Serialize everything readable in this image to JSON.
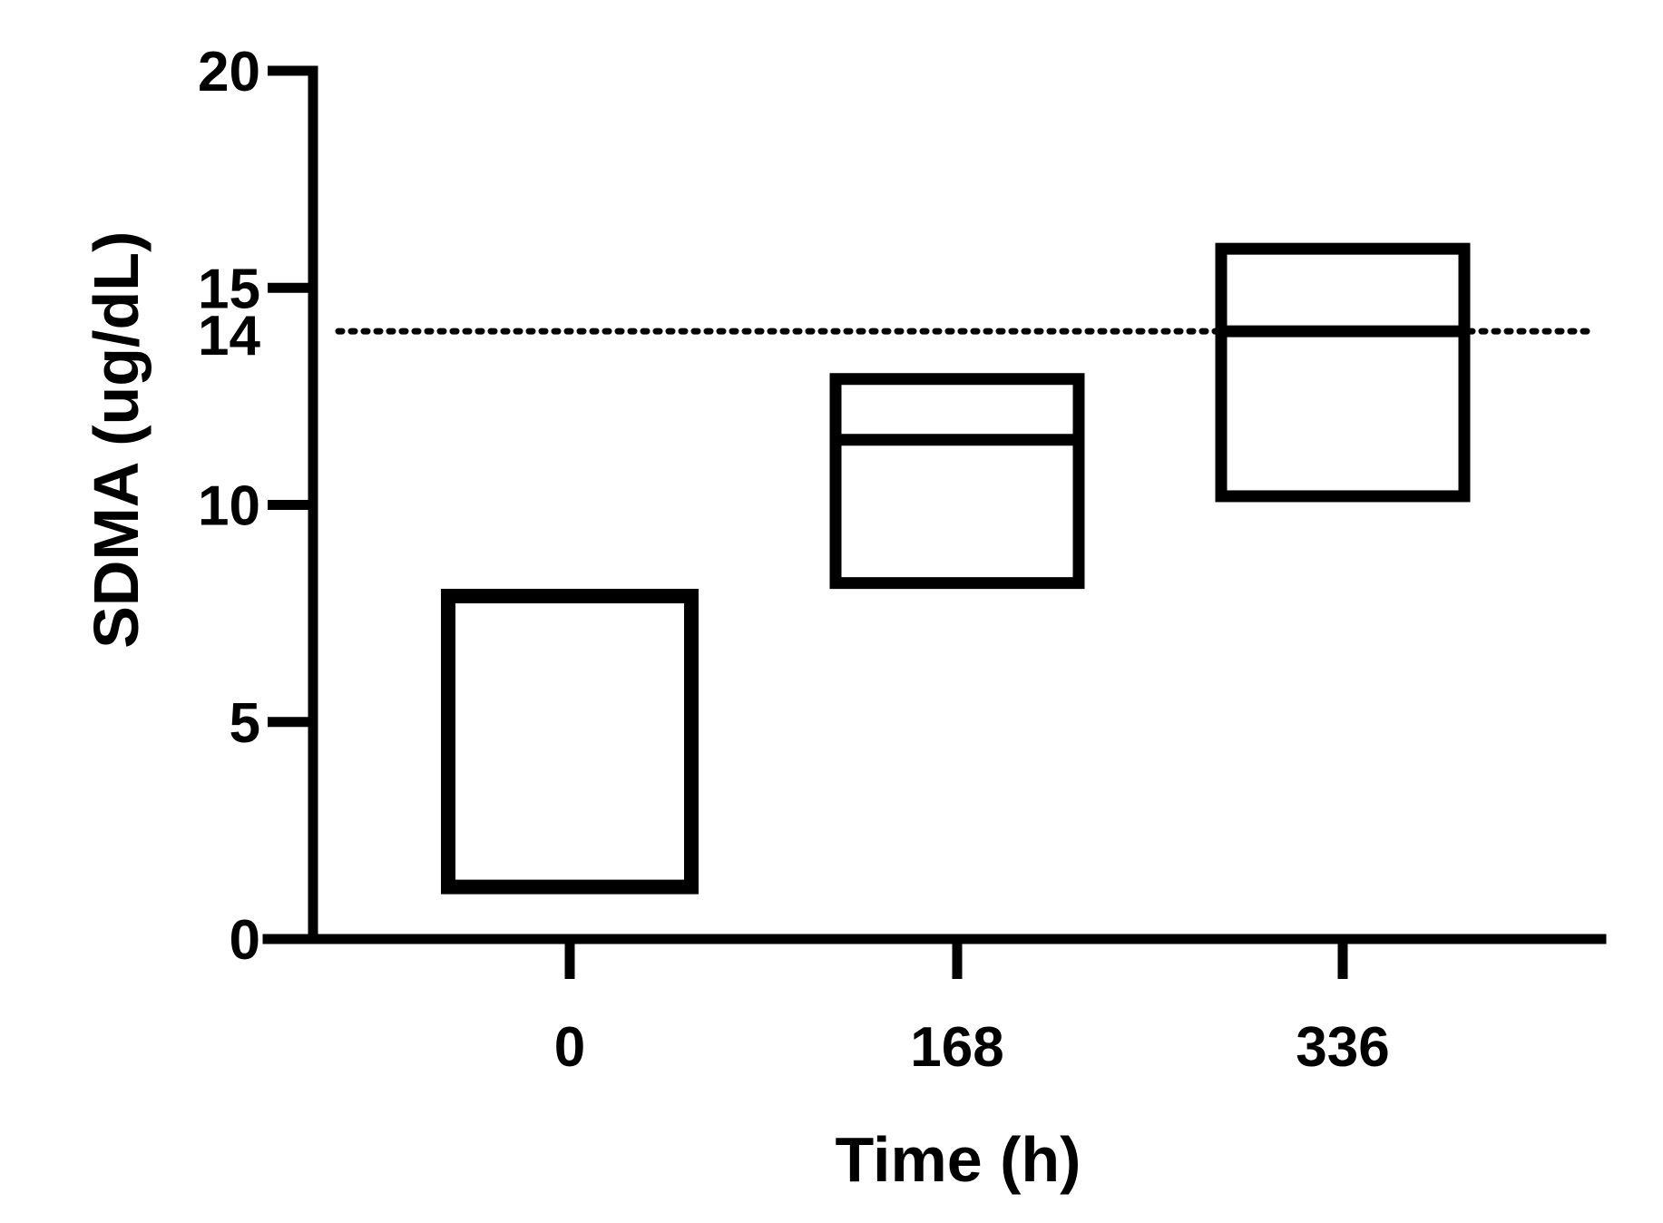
{
  "chart_data": {
    "type": "box",
    "xlabel": "Time (h)",
    "ylabel": "SDMA (ug/dL)",
    "ylim": [
      0,
      20
    ],
    "yticks": [
      "0",
      "5",
      "10",
      "15",
      "20"
    ],
    "categories": [
      "0",
      "168",
      "336"
    ],
    "boxes": [
      {
        "category": "0",
        "low": 1.2,
        "high": 7.9,
        "median": 7.9
      },
      {
        "category": "168",
        "low": 8.2,
        "high": 12.9,
        "median": 11.5
      },
      {
        "category": "336",
        "low": 10.2,
        "high": 15.9,
        "median": 14.0
      }
    ],
    "reference_line": {
      "value": 14,
      "label": "14",
      "style": "dotted"
    },
    "grid": false,
    "legend": "none",
    "colors": {
      "stroke": "#000000",
      "background": "#ffffff"
    }
  }
}
